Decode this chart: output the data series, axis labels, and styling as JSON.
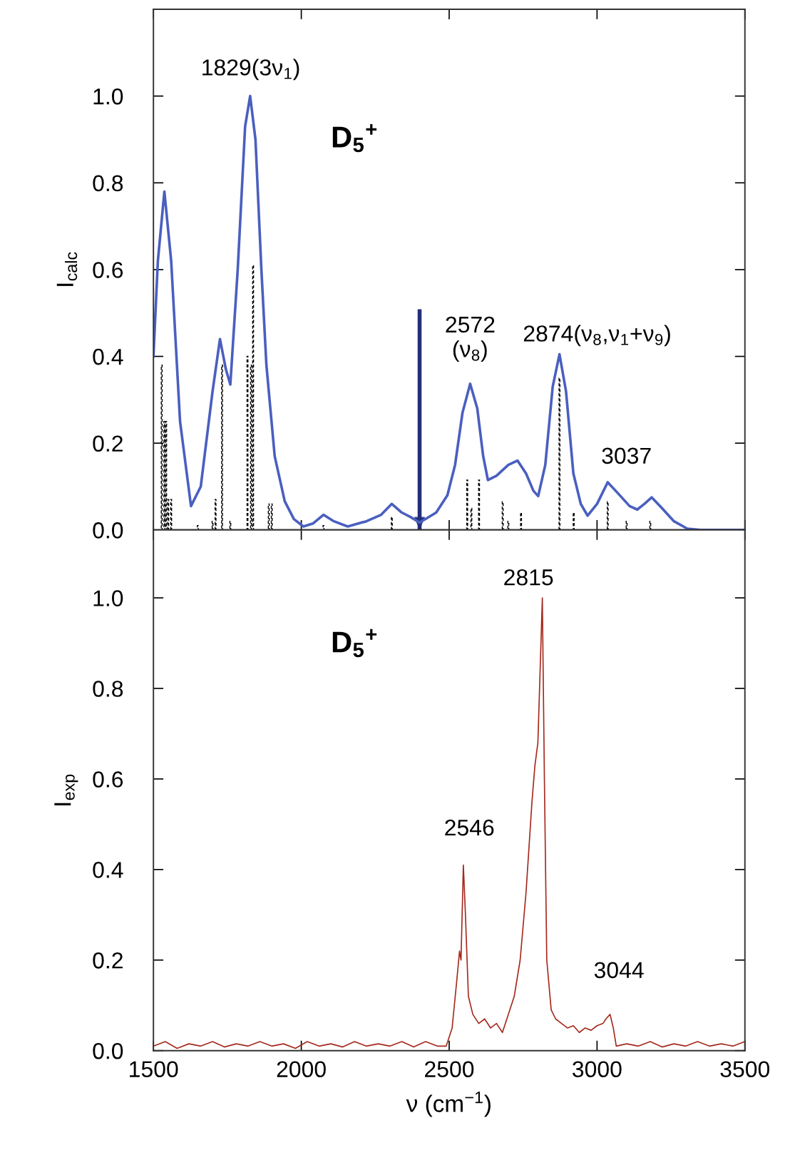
{
  "chart_data": [
    {
      "type": "line",
      "ylabel": "I$_{calc}$",
      "xlim": [
        1500,
        3500
      ],
      "xticks": [
        {
          "value": 1500,
          "label": null
        },
        {
          "value": 2000,
          "label": null
        },
        {
          "value": 2500,
          "label": null
        },
        {
          "value": 3000,
          "label": null
        },
        {
          "value": 3500,
          "label": null
        }
      ],
      "ylim": [
        0,
        1.2
      ],
      "yticks": [
        {
          "value": 0,
          "label": "0.0"
        },
        {
          "value": 0.2,
          "label": "0.2"
        },
        {
          "value": 0.4,
          "label": "0.4"
        },
        {
          "value": 0.6,
          "label": "0.6"
        },
        {
          "value": 0.8,
          "label": "0.8"
        },
        {
          "value": 1.0,
          "label": "1.0"
        }
      ],
      "tick_labels": "y",
      "grid": false,
      "series": [
        {
          "type": "bar",
          "color": "#000000",
          "line_style": "dashed",
          "x": [
            1528,
            1537,
            1543,
            1550,
            1560,
            1650,
            1700,
            1710,
            1732,
            1760,
            1818,
            1830,
            1837,
            1890,
            1900,
            2075,
            2306,
            2561,
            2575,
            2601,
            2681,
            2700,
            2743,
            2873,
            2921,
            3036,
            3100,
            3180
          ],
          "values": [
            0.38,
            0.25,
            0.25,
            0.07,
            0.07,
            0.01,
            0.02,
            0.07,
            0.38,
            0.02,
            0.4,
            0.38,
            0.61,
            0.06,
            0.06,
            0.01,
            0.03,
            0.115,
            0.05,
            0.115,
            0.065,
            0.02,
            0.04,
            0.35,
            0.04,
            0.065,
            0.02,
            0.02
          ]
        },
        {
          "color": "#4a5fbf",
          "line_style": "solid",
          "x": [
            1500,
            1515,
            1537,
            1560,
            1590,
            1627,
            1660,
            1700,
            1725,
            1745,
            1760,
            1785,
            1810,
            1827,
            1845,
            1865,
            1882,
            1910,
            1944,
            1975,
            2007,
            2040,
            2075,
            2110,
            2157,
            2220,
            2270,
            2306,
            2340,
            2369,
            2400,
            2456,
            2494,
            2520,
            2545,
            2571,
            2595,
            2615,
            2631,
            2660,
            2700,
            2731,
            2760,
            2785,
            2801,
            2825,
            2850,
            2873,
            2895,
            2920,
            2945,
            2968,
            3000,
            3036,
            3070,
            3110,
            3136,
            3160,
            3185,
            3220,
            3260,
            3305,
            3350,
            3500
          ],
          "values": [
            0.4,
            0.62,
            0.78,
            0.62,
            0.25,
            0.055,
            0.1,
            0.32,
            0.44,
            0.37,
            0.335,
            0.6,
            0.93,
            1.0,
            0.9,
            0.6,
            0.38,
            0.17,
            0.066,
            0.025,
            0.008,
            0.015,
            0.035,
            0.02,
            0.008,
            0.02,
            0.035,
            0.06,
            0.04,
            0.03,
            0.017,
            0.04,
            0.08,
            0.15,
            0.27,
            0.337,
            0.28,
            0.17,
            0.115,
            0.125,
            0.15,
            0.16,
            0.13,
            0.09,
            0.078,
            0.15,
            0.33,
            0.405,
            0.32,
            0.13,
            0.06,
            0.033,
            0.06,
            0.11,
            0.085,
            0.055,
            0.047,
            0.06,
            0.075,
            0.05,
            0.02,
            0.003,
            0,
            0
          ]
        }
      ],
      "ref_lines": [
        {
          "axis": "x",
          "value": 2400,
          "color": "#232f7a",
          "line_style": "solid"
        }
      ],
      "annotations": [
        "D$_{5}$$^{+}$",
        {
          "text": "1829(3ν$_{1}$)",
          "x": 1829,
          "y": 1.0
        },
        {
          "text": "2572\n(ν$_{8}$)",
          "x": 2571,
          "y": 0.337
        },
        {
          "text": "2874(ν$_{8}$,ν$_{1}$+ν$_{9}$)",
          "x": 2873,
          "y": 0.405
        },
        {
          "text": "3037",
          "x": 3036,
          "y": 0.11
        }
      ]
    },
    {
      "type": "line",
      "ylabel": "I$_{exp}$",
      "xlabel": "ν (cm$^{−1}$)",
      "xlim": [
        1500,
        3500
      ],
      "xticks": [
        1500,
        2000,
        2500,
        3000,
        3500
      ],
      "ylim": [
        0,
        1.15
      ],
      "yticks": [
        {
          "value": 0,
          "label": "0.0"
        },
        {
          "value": 0.2,
          "label": "0.2"
        },
        {
          "value": 0.4,
          "label": "0.4"
        },
        {
          "value": 0.6,
          "label": "0.6"
        },
        {
          "value": 0.8,
          "label": "0.8"
        },
        {
          "value": 1.0,
          "label": "1.0"
        }
      ],
      "grid": false,
      "series": [
        {
          "color": "#a52a1e",
          "line_style": "solid",
          "x": [
            1500,
            1540,
            1580,
            1620,
            1660,
            1700,
            1740,
            1780,
            1820,
            1860,
            1900,
            1940,
            1980,
            2020,
            2060,
            2100,
            2140,
            2180,
            2220,
            2260,
            2300,
            2340,
            2380,
            2420,
            2460,
            2490,
            2510,
            2525,
            2535,
            2540,
            2548,
            2555,
            2565,
            2580,
            2600,
            2620,
            2640,
            2660,
            2680,
            2700,
            2720,
            2740,
            2760,
            2770,
            2780,
            2790,
            2800,
            2808,
            2815,
            2822,
            2830,
            2845,
            2860,
            2880,
            2900,
            2920,
            2940,
            2960,
            2980,
            3000,
            3020,
            3030,
            3044,
            3055,
            3065,
            3100,
            3140,
            3180,
            3220,
            3260,
            3300,
            3340,
            3380,
            3420,
            3460,
            3500
          ],
          "values": [
            0.01,
            0.02,
            0.005,
            0.015,
            0.01,
            0.02,
            0.008,
            0.015,
            0.01,
            0.02,
            0.01,
            0.015,
            0.005,
            0.02,
            0.01,
            0.015,
            0.008,
            0.02,
            0.01,
            0.015,
            0.01,
            0.02,
            0.008,
            0.02,
            0.01,
            0.01,
            0.05,
            0.15,
            0.22,
            0.2,
            0.41,
            0.3,
            0.12,
            0.08,
            0.06,
            0.07,
            0.05,
            0.06,
            0.04,
            0.08,
            0.12,
            0.2,
            0.35,
            0.45,
            0.55,
            0.63,
            0.68,
            0.85,
            1.0,
            0.6,
            0.2,
            0.09,
            0.07,
            0.06,
            0.05,
            0.055,
            0.04,
            0.05,
            0.045,
            0.055,
            0.06,
            0.07,
            0.08,
            0.05,
            0.01,
            0.015,
            0.01,
            0.02,
            0.008,
            0.015,
            0.01,
            0.02,
            0.01,
            0.015,
            0.01,
            0.02
          ]
        }
      ],
      "annotations": [
        "D$_{5}$$^{+}$",
        {
          "text": "2815",
          "x": 2815,
          "y": 1.0
        },
        {
          "text": "2546",
          "x": 2548,
          "y": 0.41
        },
        {
          "text": "3044",
          "x": 3044,
          "y": 0.08
        }
      ]
    }
  ]
}
